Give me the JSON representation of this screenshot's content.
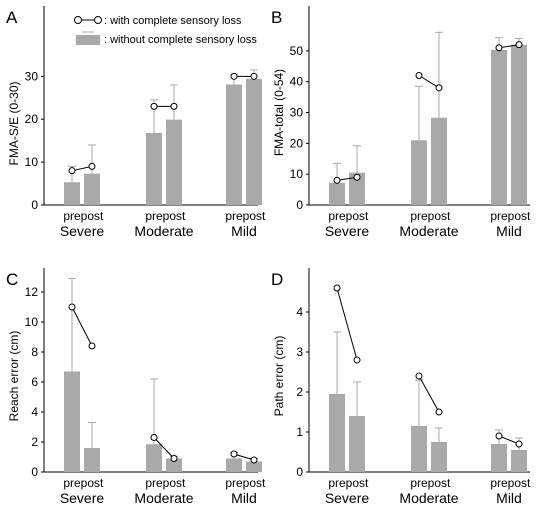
{
  "legend": {
    "with_loss": ": with complete sensory loss",
    "without_loss": ": without complete sensory loss"
  },
  "colors": {
    "bar": "#a9a9a9",
    "line": "#000000"
  },
  "chart_data": [
    {
      "panel": "A",
      "type": "bar",
      "ylabel": "FMA-S/E (0-30)",
      "ylim": [
        0,
        38
      ],
      "yticks": [
        0,
        10,
        20,
        30
      ],
      "groups": [
        "Severe",
        "Moderate",
        "Mild"
      ],
      "sub_labels": [
        "pre",
        "post"
      ],
      "series": [
        {
          "name": ": without complete sensory loss",
          "values": [
            [
              5.3,
              7.3
            ],
            [
              16.8,
              19.9
            ],
            [
              28.1,
              29.4
            ]
          ],
          "err_upper": [
            [
              9.0,
              14.0
            ],
            [
              24.5,
              28.0
            ],
            [
              30.5,
              31.5
            ]
          ]
        },
        {
          "name": ": with complete sensory loss",
          "values": [
            [
              8.0,
              9.0
            ],
            [
              23.0,
              23.0
            ],
            [
              30.0,
              30.0
            ]
          ]
        }
      ]
    },
    {
      "panel": "B",
      "type": "bar",
      "ylabel": "FMA-total (0-54)",
      "ylim": [
        0,
        60
      ],
      "yticks": [
        0,
        10,
        20,
        30,
        40,
        50
      ],
      "groups": [
        "Severe",
        "Moderate",
        "Mild"
      ],
      "sub_labels": [
        "pre",
        "post"
      ],
      "series": [
        {
          "name": ": without complete sensory loss",
          "values": [
            [
              7.2,
              10.5
            ],
            [
              21.0,
              28.3
            ],
            [
              50.3,
              52.0
            ]
          ],
          "err_upper": [
            [
              13.5,
              19.2
            ],
            [
              38.5,
              56.0
            ],
            [
              54.3,
              54.0
            ]
          ]
        },
        {
          "name": ": with complete sensory loss",
          "values": [
            [
              8.0,
              9.0
            ],
            [
              42.0,
              38.0
            ],
            [
              51.0,
              52.0
            ]
          ]
        }
      ]
    },
    {
      "panel": "C",
      "type": "bar",
      "ylabel": "Reach error (cm)",
      "ylim": [
        0,
        12.8
      ],
      "yticks": [
        0,
        2,
        4,
        6,
        8,
        10,
        12
      ],
      "groups": [
        "Severe",
        "Moderate",
        "Mild"
      ],
      "sub_labels": [
        "pre",
        "post"
      ],
      "series": [
        {
          "name": ": without complete sensory loss",
          "values": [
            [
              6.7,
              1.6
            ],
            [
              1.85,
              0.9
            ],
            [
              0.9,
              0.7
            ]
          ],
          "err_upper": [
            [
              12.9,
              3.3
            ],
            [
              6.2,
              1.05
            ],
            [
              1.3,
              0.9
            ]
          ]
        },
        {
          "name": ": with complete sensory loss",
          "values": [
            [
              11.0,
              8.4
            ],
            [
              2.3,
              0.9
            ],
            [
              1.2,
              0.8
            ]
          ]
        }
      ]
    },
    {
      "panel": "D",
      "type": "bar",
      "ylabel": "Path error (cm)",
      "ylim": [
        0,
        4.8
      ],
      "yticks": [
        0,
        1,
        2,
        3,
        4
      ],
      "groups": [
        "Severe",
        "Moderate",
        "Mild"
      ],
      "sub_labels": [
        "pre",
        "post"
      ],
      "series": [
        {
          "name": ": without complete sensory loss",
          "values": [
            [
              1.95,
              1.4
            ],
            [
              1.15,
              0.75
            ],
            [
              0.7,
              0.55
            ]
          ],
          "err_upper": [
            [
              3.5,
              2.25
            ],
            [
              2.3,
              1.1
            ],
            [
              1.05,
              0.85
            ]
          ]
        },
        {
          "name": ": with complete sensory loss",
          "values": [
            [
              4.6,
              2.8
            ],
            [
              2.4,
              1.5
            ],
            [
              0.9,
              0.7
            ]
          ]
        }
      ]
    }
  ]
}
